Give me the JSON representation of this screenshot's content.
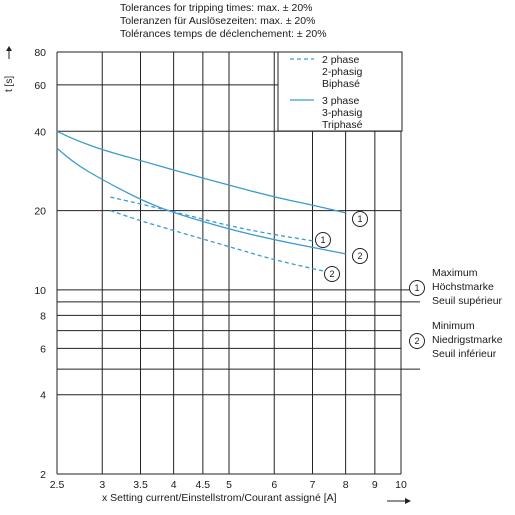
{
  "header": {
    "line1": "Tolerances for tripping times: max. ± 20%",
    "line2": "Toleranzen für Auslösezeiten: max. ± 20%",
    "line3": "Tolérances temps de déclenchement: ± 20%"
  },
  "side_notes": {
    "max_marker": "1",
    "max_lines": [
      "Maximum",
      "Höchstmarke",
      "Seuil supérieur"
    ],
    "min_marker": "2",
    "min_lines": [
      "Minimum",
      "Niedrigstmarke",
      "Seuil inférieur"
    ]
  },
  "legend": {
    "two_phase": [
      "2 phase",
      "2-phasig",
      "Biphasé"
    ],
    "three_phase": [
      "3 phase",
      "3-phasig",
      "Triphasé"
    ]
  },
  "colors": {
    "curve": "#3a9bd0",
    "grid": "#222222",
    "text": "#1a1a1a"
  },
  "chart_data": {
    "type": "line",
    "xlabel": "x Setting current/Einstellstrom/Courant assigné [A]",
    "ylabel": "t [s]",
    "x_scale": "log",
    "y_scale": "log",
    "xlim": [
      2.5,
      10
    ],
    "ylim": [
      2,
      80
    ],
    "x_ticks": [
      2.5,
      3,
      3.5,
      4,
      4.5,
      5,
      6,
      7,
      8,
      9,
      10
    ],
    "x_tick_labels": [
      "2.5",
      "3",
      "3.5",
      "4",
      "4.5",
      "5",
      "6",
      "7",
      "8",
      "9",
      "10"
    ],
    "y_ticks": [
      2,
      4,
      6,
      8,
      10,
      20,
      40,
      60,
      80
    ],
    "y_tick_labels": [
      "2",
      "4",
      "6",
      "8",
      "10",
      "20",
      "40",
      "60",
      "80"
    ],
    "y_grid": [
      2,
      4,
      5,
      6,
      7,
      8,
      9,
      10,
      20,
      40,
      60,
      80
    ],
    "grid": true,
    "legend_position": "top-right",
    "series": [
      {
        "name": "3 phase",
        "marker": "1",
        "style": "solid",
        "x": [
          2.5,
          2.7,
          3,
          3.5,
          4,
          5,
          6,
          7,
          8
        ],
        "y": [
          40,
          37,
          34,
          31,
          28.5,
          25,
          22.5,
          21,
          19.6
        ]
      },
      {
        "name": "3 phase",
        "marker": "2",
        "style": "solid",
        "x": [
          2.5,
          2.7,
          3,
          3.5,
          4,
          5,
          6,
          7,
          8
        ],
        "y": [
          34.5,
          30,
          26.2,
          22,
          19.6,
          17,
          15.5,
          14.5,
          13.7
        ]
      },
      {
        "name": "2 phase",
        "marker": "1",
        "style": "dashed",
        "x": [
          3.1,
          3.5,
          4,
          5,
          6,
          7.2
        ],
        "y": [
          22.5,
          21.2,
          19.8,
          17.5,
          16.2,
          15.2
        ]
      },
      {
        "name": "2 phase",
        "marker": "2",
        "style": "dashed",
        "x": [
          3.1,
          3.5,
          4,
          5,
          6,
          7.3
        ],
        "y": [
          20,
          18.3,
          16.8,
          14.6,
          13,
          11.8
        ]
      }
    ]
  }
}
